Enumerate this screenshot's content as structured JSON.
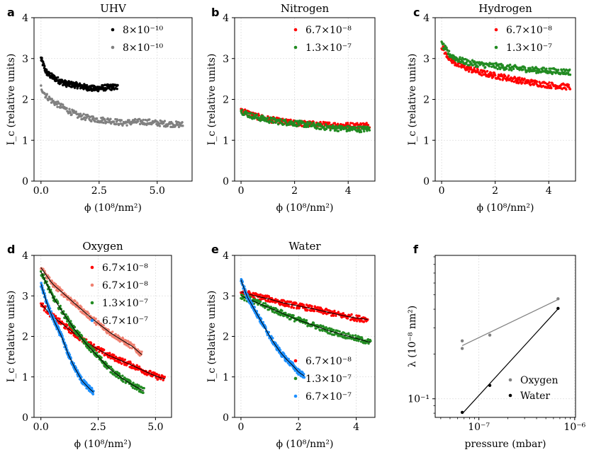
{
  "chart_data": [
    {
      "panel": "a",
      "type": "scatter",
      "title": "UHV",
      "xlabel": "ϕ (10⁸/nm²)",
      "ylabel": "I_c (relative units)",
      "xlim": [
        -0.3,
        6.5
      ],
      "ylim": [
        0,
        4
      ],
      "xticks": [
        0,
        2.5,
        5
      ],
      "xticklabels": [
        "0.0",
        "2.5",
        "5.0"
      ],
      "yticks": [
        0,
        1,
        2,
        3,
        4
      ],
      "yticklabels": [
        "0",
        "1",
        "2",
        "3",
        "4"
      ],
      "legend_position": "top-right",
      "series": [
        {
          "name": "8×10⁻¹⁰",
          "color": "#000000",
          "x": [
            0,
            0.1,
            0.2,
            0.3,
            0.5,
            0.8,
            1.1,
            1.5,
            1.9,
            2.3,
            2.6,
            3.0,
            3.3
          ],
          "y": [
            3.0,
            2.85,
            2.7,
            2.62,
            2.55,
            2.45,
            2.38,
            2.35,
            2.3,
            2.26,
            2.28,
            2.3,
            2.3
          ]
        },
        {
          "name": "8×10⁻¹⁰",
          "color": "#808080",
          "x": [
            0,
            0.2,
            0.5,
            0.8,
            1.2,
            1.6,
            2.0,
            2.5,
            3.0,
            3.5,
            4.0,
            4.5,
            5.0,
            5.5,
            6.1
          ],
          "y": [
            2.3,
            2.1,
            1.95,
            1.85,
            1.72,
            1.6,
            1.55,
            1.5,
            1.48,
            1.42,
            1.45,
            1.45,
            1.42,
            1.4,
            1.38
          ]
        }
      ]
    },
    {
      "panel": "b",
      "type": "scatter",
      "title": "Nitrogen",
      "xlabel": "ϕ (10⁸/nm²)",
      "ylabel": "I_c (relative units)",
      "xlim": [
        -0.24,
        5.0
      ],
      "ylim": [
        0,
        4
      ],
      "xticks": [
        0,
        2,
        4
      ],
      "xticklabels": [
        "0",
        "2",
        "4"
      ],
      "yticks": [
        0,
        1,
        2,
        3,
        4
      ],
      "yticklabels": [
        "0",
        "1",
        "2",
        "3",
        "4"
      ],
      "legend_position": "top-right",
      "series": [
        {
          "name": "6.7×10⁻⁸",
          "color": "#ff0000",
          "x": [
            0,
            0.3,
            0.6,
            1.0,
            1.5,
            2.0,
            2.5,
            3.0,
            3.5,
            4.0,
            4.5,
            4.8
          ],
          "y": [
            1.75,
            1.65,
            1.58,
            1.52,
            1.46,
            1.42,
            1.4,
            1.38,
            1.37,
            1.36,
            1.36,
            1.37
          ]
        },
        {
          "name": "1.3×10⁻⁷",
          "color": "#228b22",
          "x": [
            0,
            0.3,
            0.6,
            1.0,
            1.5,
            2.0,
            2.5,
            3.0,
            3.5,
            4.0,
            4.5,
            4.8
          ],
          "y": [
            1.72,
            1.62,
            1.56,
            1.5,
            1.45,
            1.42,
            1.38,
            1.33,
            1.3,
            1.28,
            1.27,
            1.28
          ]
        }
      ]
    },
    {
      "panel": "c",
      "type": "scatter",
      "title": "Hydrogen",
      "xlabel": "ϕ (10⁸/nm²)",
      "ylabel": "I_c (relative units)",
      "xlim": [
        -0.24,
        5.0
      ],
      "ylim": [
        0,
        4
      ],
      "xticks": [
        0,
        2,
        4
      ],
      "xticklabels": [
        "0",
        "2",
        "4"
      ],
      "yticks": [
        0,
        1,
        2,
        3,
        4
      ],
      "yticklabels": [
        "0",
        "1",
        "2",
        "3",
        "4"
      ],
      "legend_position": "top-right",
      "series": [
        {
          "name": "6.7×10⁻⁸",
          "color": "#ff0000",
          "x": [
            0,
            0.3,
            0.6,
            1.0,
            1.5,
            2.0,
            2.5,
            3.0,
            3.5,
            4.0,
            4.5,
            4.8
          ],
          "y": [
            3.3,
            3.0,
            2.85,
            2.75,
            2.65,
            2.58,
            2.52,
            2.45,
            2.4,
            2.35,
            2.32,
            2.3
          ]
        },
        {
          "name": "1.3×10⁻⁷",
          "color": "#228b22",
          "x": [
            0,
            0.3,
            0.6,
            1.0,
            1.5,
            2.0,
            2.5,
            3.0,
            3.5,
            4.0,
            4.5,
            4.8
          ],
          "y": [
            3.35,
            3.1,
            2.98,
            2.9,
            2.85,
            2.82,
            2.78,
            2.75,
            2.72,
            2.7,
            2.68,
            2.67
          ]
        }
      ]
    },
    {
      "panel": "d",
      "type": "scatter",
      "title": "Oxygen",
      "xlabel": "ϕ (10⁸/nm²)",
      "ylabel": "I_c (relative units)",
      "xlim": [
        -0.3,
        5.7
      ],
      "ylim": [
        0,
        4
      ],
      "xticks": [
        0,
        2.5,
        5
      ],
      "xticklabels": [
        "0.0",
        "2.5",
        "5.0"
      ],
      "yticks": [
        0,
        1,
        2,
        3,
        4
      ],
      "yticklabels": [
        "0",
        "1",
        "2",
        "3",
        "4"
      ],
      "legend_position": "top-right",
      "series": [
        {
          "name": "6.7×10⁻⁸",
          "color": "#ff0000",
          "x": [
            0,
            0.5,
            1,
            1.5,
            2,
            2.5,
            3,
            3.5,
            4,
            4.5,
            5,
            5.4
          ],
          "y": [
            2.8,
            2.5,
            2.28,
            2.05,
            1.85,
            1.68,
            1.52,
            1.4,
            1.28,
            1.15,
            1.02,
            0.95
          ],
          "fit": true
        },
        {
          "name": "6.7×10⁻⁸",
          "color": "#f08070",
          "x": [
            0,
            0.5,
            1,
            1.5,
            2,
            2.5,
            3,
            3.5,
            4,
            4.4
          ],
          "y": [
            3.7,
            3.3,
            3.05,
            2.8,
            2.55,
            2.32,
            2.1,
            1.92,
            1.75,
            1.55
          ],
          "fit": true
        },
        {
          "name": "1.3×10⁻⁷",
          "color": "#228b22",
          "x": [
            0,
            0.5,
            1,
            1.5,
            2,
            2.5,
            3,
            3.5,
            4,
            4.5
          ],
          "y": [
            3.6,
            3.0,
            2.55,
            2.15,
            1.8,
            1.5,
            1.2,
            0.98,
            0.8,
            0.65
          ],
          "fit": true
        },
        {
          "name": "6.7×10⁻⁷",
          "color": "#1e90ff",
          "x": [
            0,
            0.3,
            0.6,
            0.9,
            1.2,
            1.5,
            1.8,
            2.1,
            2.3
          ],
          "y": [
            3.3,
            2.75,
            2.35,
            2.0,
            1.55,
            1.2,
            0.9,
            0.72,
            0.62
          ],
          "fit": true
        }
      ]
    },
    {
      "panel": "e",
      "type": "scatter",
      "title": "Water",
      "xlabel": "ϕ (10⁸/nm²)",
      "ylabel": "I_c (relative units)",
      "xlim": [
        -0.22,
        4.65
      ],
      "ylim": [
        0,
        4
      ],
      "xticks": [
        0,
        2,
        4
      ],
      "xticklabels": [
        "0",
        "2",
        "4"
      ],
      "yticks": [
        0,
        1,
        2,
        3,
        4
      ],
      "yticklabels": [
        "0",
        "1",
        "2",
        "3",
        "4"
      ],
      "legend_position": "bottom-right",
      "series": [
        {
          "name": "6.7×10⁻⁸",
          "color": "#ff0000",
          "x": [
            0,
            0.5,
            1,
            1.5,
            2,
            2.5,
            3,
            3.5,
            4,
            4.4
          ],
          "y": [
            3.1,
            3.0,
            2.92,
            2.82,
            2.75,
            2.68,
            2.6,
            2.52,
            2.45,
            2.42
          ],
          "fit": true
        },
        {
          "name": "1.3×10⁻⁷",
          "color": "#228b22",
          "x": [
            0,
            0.5,
            1,
            1.5,
            2,
            2.5,
            3,
            3.5,
            4,
            4.5
          ],
          "y": [
            3.0,
            2.85,
            2.7,
            2.55,
            2.4,
            2.28,
            2.15,
            2.05,
            1.95,
            1.85
          ],
          "fit": true
        },
        {
          "name": "6.7×10⁻⁷",
          "color": "#1e90ff",
          "x": [
            0,
            0.2,
            0.4,
            0.6,
            0.8,
            1.0,
            1.2,
            1.4,
            1.6,
            1.8,
            2.0,
            2.2
          ],
          "y": [
            3.4,
            3.0,
            2.75,
            2.5,
            2.25,
            2.0,
            1.78,
            1.58,
            1.42,
            1.28,
            1.12,
            1.02
          ],
          "fit": true
        }
      ]
    },
    {
      "panel": "f",
      "type": "scatter",
      "title": "",
      "xlabel": "pressure (mbar)",
      "ylabel": "λ (10⁻⁸ nm²)",
      "xscale": "log",
      "yscale": "log",
      "xlim": [
        3.5e-08,
        1.02e-06
      ],
      "ylim": [
        0.075,
        0.92
      ],
      "xticks": [
        1e-07,
        1e-06
      ],
      "xticklabels": [
        "10⁻⁷",
        "10⁻⁶"
      ],
      "yticks": [
        0.1
      ],
      "yticklabels": [
        "10⁻¹"
      ],
      "legend_position": "bottom-right",
      "series": [
        {
          "name": "Oxygen",
          "color": "#808080",
          "x": [
            6.7e-08,
            6.7e-08,
            1.3e-07,
            6.7e-07
          ],
          "y": [
            0.245,
            0.218,
            0.268,
            0.47
          ],
          "fit": true
        },
        {
          "name": "Water",
          "color": "#000000",
          "x": [
            6.7e-08,
            1.3e-07,
            6.7e-07
          ],
          "y": [
            0.081,
            0.123,
            0.405
          ],
          "fit": true
        }
      ]
    }
  ],
  "panel_letters": [
    "a",
    "b",
    "c",
    "d",
    "e",
    "f"
  ]
}
